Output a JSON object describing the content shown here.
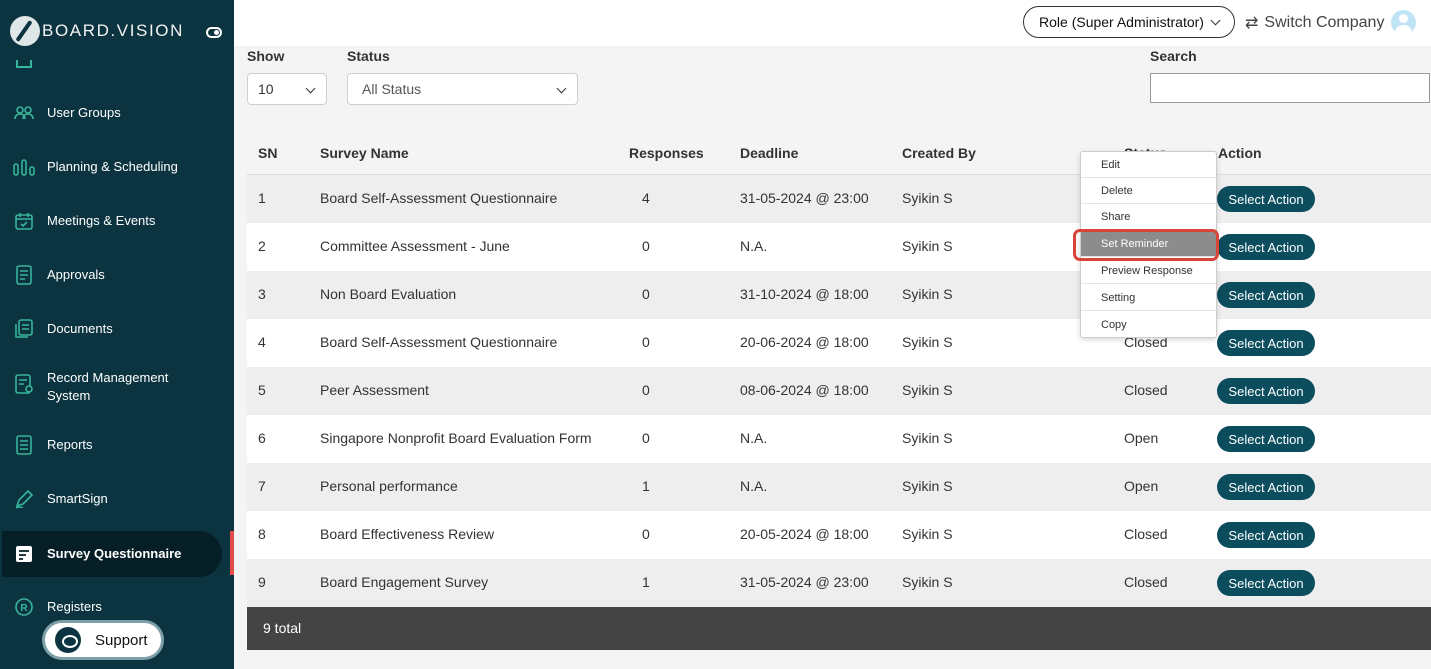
{
  "brand": {
    "name": "BOARD.VISION"
  },
  "sidebar": {
    "items": [
      {
        "label": "User Groups",
        "icon": "users-icon"
      },
      {
        "label": "Planning & Scheduling",
        "icon": "bar-chart-icon"
      },
      {
        "label": "Meetings & Events",
        "icon": "calendar-check-icon"
      },
      {
        "label": "Approvals",
        "icon": "approval-doc-icon"
      },
      {
        "label": "Documents",
        "icon": "documents-icon"
      },
      {
        "label": "Record Management System",
        "icon": "record-icon"
      },
      {
        "label": "Reports",
        "icon": "report-list-icon"
      },
      {
        "label": "SmartSign",
        "icon": "pen-icon"
      },
      {
        "label": "Survey Questionnaire",
        "icon": "survey-icon",
        "active": true
      },
      {
        "label": "Registers",
        "icon": "registered-icon"
      }
    ],
    "support_label": "Support"
  },
  "header": {
    "role_label": "Role (Super Administrator)",
    "switch_label": "Switch Company"
  },
  "filters": {
    "show_label": "Show",
    "show_value": "10",
    "status_label": "Status",
    "status_value": "All Status",
    "search_label": "Search",
    "search_value": ""
  },
  "table": {
    "columns": [
      "SN",
      "Survey Name",
      "Responses",
      "Deadline",
      "Created By",
      "Status",
      "Action"
    ],
    "rows": [
      {
        "sn": "1",
        "name": "Board Self-Assessment Questionnaire",
        "responses": "4",
        "deadline": "31-05-2024 @ 23:00",
        "created_by": "Syikin S",
        "status": "",
        "action": "Select Action"
      },
      {
        "sn": "2",
        "name": "Committee Assessment - June",
        "responses": "0",
        "deadline": "N.A.",
        "created_by": "Syikin S",
        "status": "",
        "action": "Select Action"
      },
      {
        "sn": "3",
        "name": "Non Board Evaluation",
        "responses": "0",
        "deadline": "31-10-2024 @ 18:00",
        "created_by": "Syikin S",
        "status": "",
        "action": "Select Action"
      },
      {
        "sn": "4",
        "name": "Board Self-Assessment Questionnaire",
        "responses": "0",
        "deadline": "20-06-2024 @ 18:00",
        "created_by": "Syikin S",
        "status": "Closed",
        "action": "Select Action"
      },
      {
        "sn": "5",
        "name": "Peer Assessment",
        "responses": "0",
        "deadline": "08-06-2024 @ 18:00",
        "created_by": "Syikin S",
        "status": "Closed",
        "action": "Select Action"
      },
      {
        "sn": "6",
        "name": "Singapore Nonprofit Board Evaluation Form",
        "responses": "0",
        "deadline": "N.A.",
        "created_by": "Syikin S",
        "status": "Open",
        "action": "Select Action"
      },
      {
        "sn": "7",
        "name": "Personal performance",
        "responses": "1",
        "deadline": "N.A.",
        "created_by": "Syikin S",
        "status": "Open",
        "action": "Select Action"
      },
      {
        "sn": "8",
        "name": "Board Effectiveness Review",
        "responses": "0",
        "deadline": "20-05-2024 @ 18:00",
        "created_by": "Syikin S",
        "status": "Closed",
        "action": "Select Action"
      },
      {
        "sn": "9",
        "name": "Board Engagement Survey",
        "responses": "1",
        "deadline": "31-05-2024 @ 23:00",
        "created_by": "Syikin S",
        "status": "Closed",
        "action": "Select Action"
      }
    ],
    "footer": "9 total"
  },
  "action_menu": {
    "items": [
      "Edit",
      "Delete",
      "Share",
      "Set Reminder",
      "Preview Response",
      "Setting",
      "Copy"
    ],
    "highlighted": "Set Reminder"
  },
  "colors": {
    "sidebar_bg": "#0b3440",
    "accent": "#38b59a",
    "action_button": "#0b4d5c",
    "highlight_ring": "#d9443a"
  }
}
